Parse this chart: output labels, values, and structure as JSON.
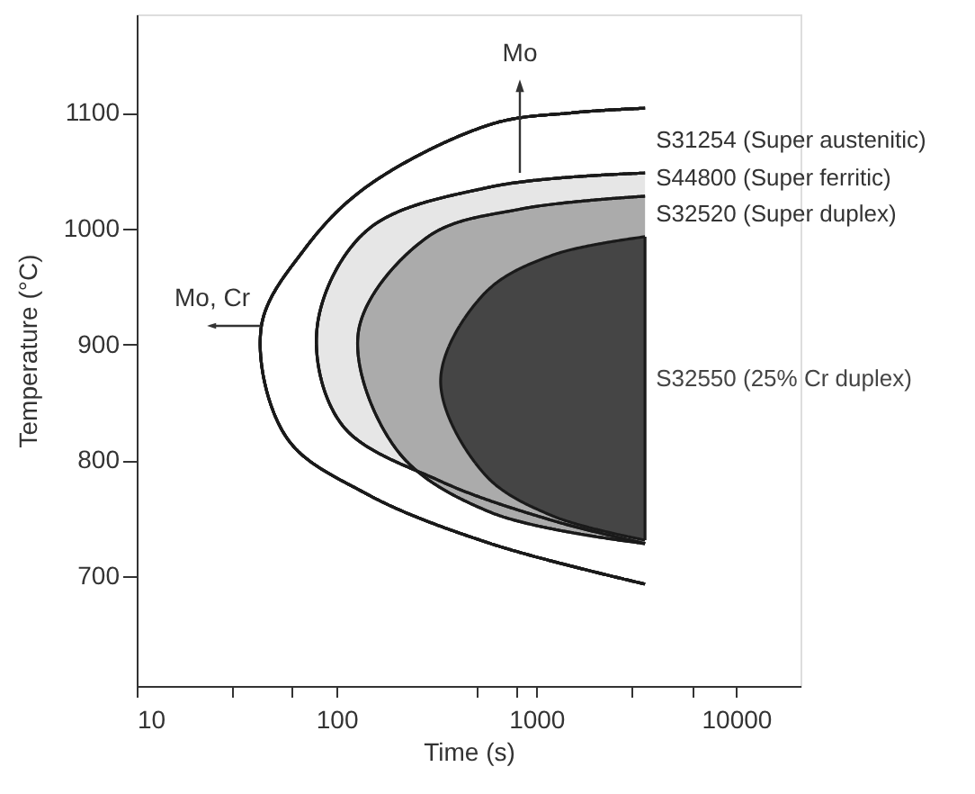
{
  "chart_data": {
    "type": "area",
    "xlabel": "Time (s)",
    "ylabel": "Temperature (°C)",
    "log": "x",
    "xlim": [
      10,
      21000
    ],
    "ylim": [
      605,
      1185
    ],
    "xticks": [
      10,
      {
        "value": 30,
        "label": null
      },
      {
        "value": 60,
        "label": null
      },
      100,
      {
        "value": 500,
        "label": null
      },
      {
        "value": 800,
        "label": null
      },
      1000,
      {
        "value": 3000,
        "label": null
      },
      {
        "value": 6000,
        "label": null
      },
      10000
    ],
    "yticks": [
      700,
      800,
      900,
      1000,
      1100
    ],
    "grid": false,
    "legend": false,
    "marker": "none",
    "line_style": "solid",
    "series": [
      {
        "name": "S31254 (Super austenitic)",
        "color": "#ffffff",
        "x": [
          3500,
          1500,
          590,
          141,
          69,
          42,
          56,
          141,
          590,
          3500
        ],
        "values": [
          1104,
          1100,
          1090,
          1036,
          982,
          915,
          820,
          771,
          728,
          693
        ]
      },
      {
        "name": "S44800 (Super ferritic)",
        "color": "#e6e6e6",
        "x": [
          3500,
          590,
          141,
          80,
          106,
          330,
          1200,
          3500
        ],
        "values": [
          1048,
          1036,
          998,
          915,
          831,
          782,
          748,
          728
        ]
      },
      {
        "name": "S32520 (Super duplex)",
        "color": "#ababab",
        "x": [
          3500,
          840,
          287,
          129,
          200,
          590,
          3500
        ],
        "values": [
          1028,
          1017,
          993,
          912,
          809,
          755,
          728
        ]
      },
      {
        "name": "S32550 (25% Cr duplex)",
        "color": "#454545",
        "x": [
          3500,
          1200,
          550,
          332,
          550,
          1200,
          3500
        ],
        "values": [
          993,
          977,
          944,
          869,
          788,
          752,
          731
        ]
      }
    ],
    "annotations": [
      "Mo",
      "Mo, Cr"
    ]
  }
}
